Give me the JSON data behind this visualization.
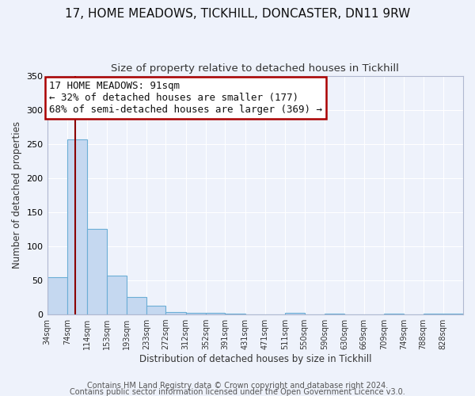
{
  "title1": "17, HOME MEADOWS, TICKHILL, DONCASTER, DN11 9RW",
  "title2": "Size of property relative to detached houses in Tickhill",
  "xlabel": "Distribution of detached houses by size in Tickhill",
  "ylabel": "Number of detached properties",
  "bar_labels": [
    "34sqm",
    "74sqm",
    "114sqm",
    "153sqm",
    "193sqm",
    "233sqm",
    "272sqm",
    "312sqm",
    "352sqm",
    "391sqm",
    "431sqm",
    "471sqm",
    "511sqm",
    "550sqm",
    "590sqm",
    "630sqm",
    "669sqm",
    "709sqm",
    "749sqm",
    "788sqm",
    "828sqm"
  ],
  "bar_heights": [
    55,
    257,
    126,
    57,
    26,
    13,
    4,
    2,
    2,
    1,
    0,
    0,
    2,
    0,
    1,
    0,
    0,
    1,
    0,
    1,
    1
  ],
  "bar_color": "#c5d8f0",
  "bar_edge_color": "#6baed6",
  "vline_x_bin": 1,
  "bin_edges": [
    34,
    74,
    114,
    153,
    193,
    233,
    272,
    312,
    352,
    391,
    431,
    471,
    511,
    550,
    590,
    630,
    669,
    709,
    749,
    788,
    828,
    868
  ],
  "annotation_line1": "17 HOME MEADOWS: 91sqm",
  "annotation_line2": "← 32% of detached houses are smaller (177)",
  "annotation_line3": "68% of semi-detached houses are larger (369) →",
  "annotation_box_color": "white",
  "annotation_box_edge_color": "#aa0000",
  "vline_color": "#8b0000",
  "ylim": [
    0,
    350
  ],
  "yticks": [
    0,
    50,
    100,
    150,
    200,
    250,
    300,
    350
  ],
  "footer1": "Contains HM Land Registry data © Crown copyright and database right 2024.",
  "footer2": "Contains public sector information licensed under the Open Government Licence v3.0.",
  "background_color": "#eef2fb",
  "plot_bg_color": "#eef2fb",
  "grid_color": "white",
  "title1_fontsize": 11,
  "title2_fontsize": 9.5,
  "annotation_fontsize": 9,
  "footer_fontsize": 7,
  "ylabel_fontsize": 8.5,
  "xlabel_fontsize": 8.5,
  "tick_fontsize": 7
}
